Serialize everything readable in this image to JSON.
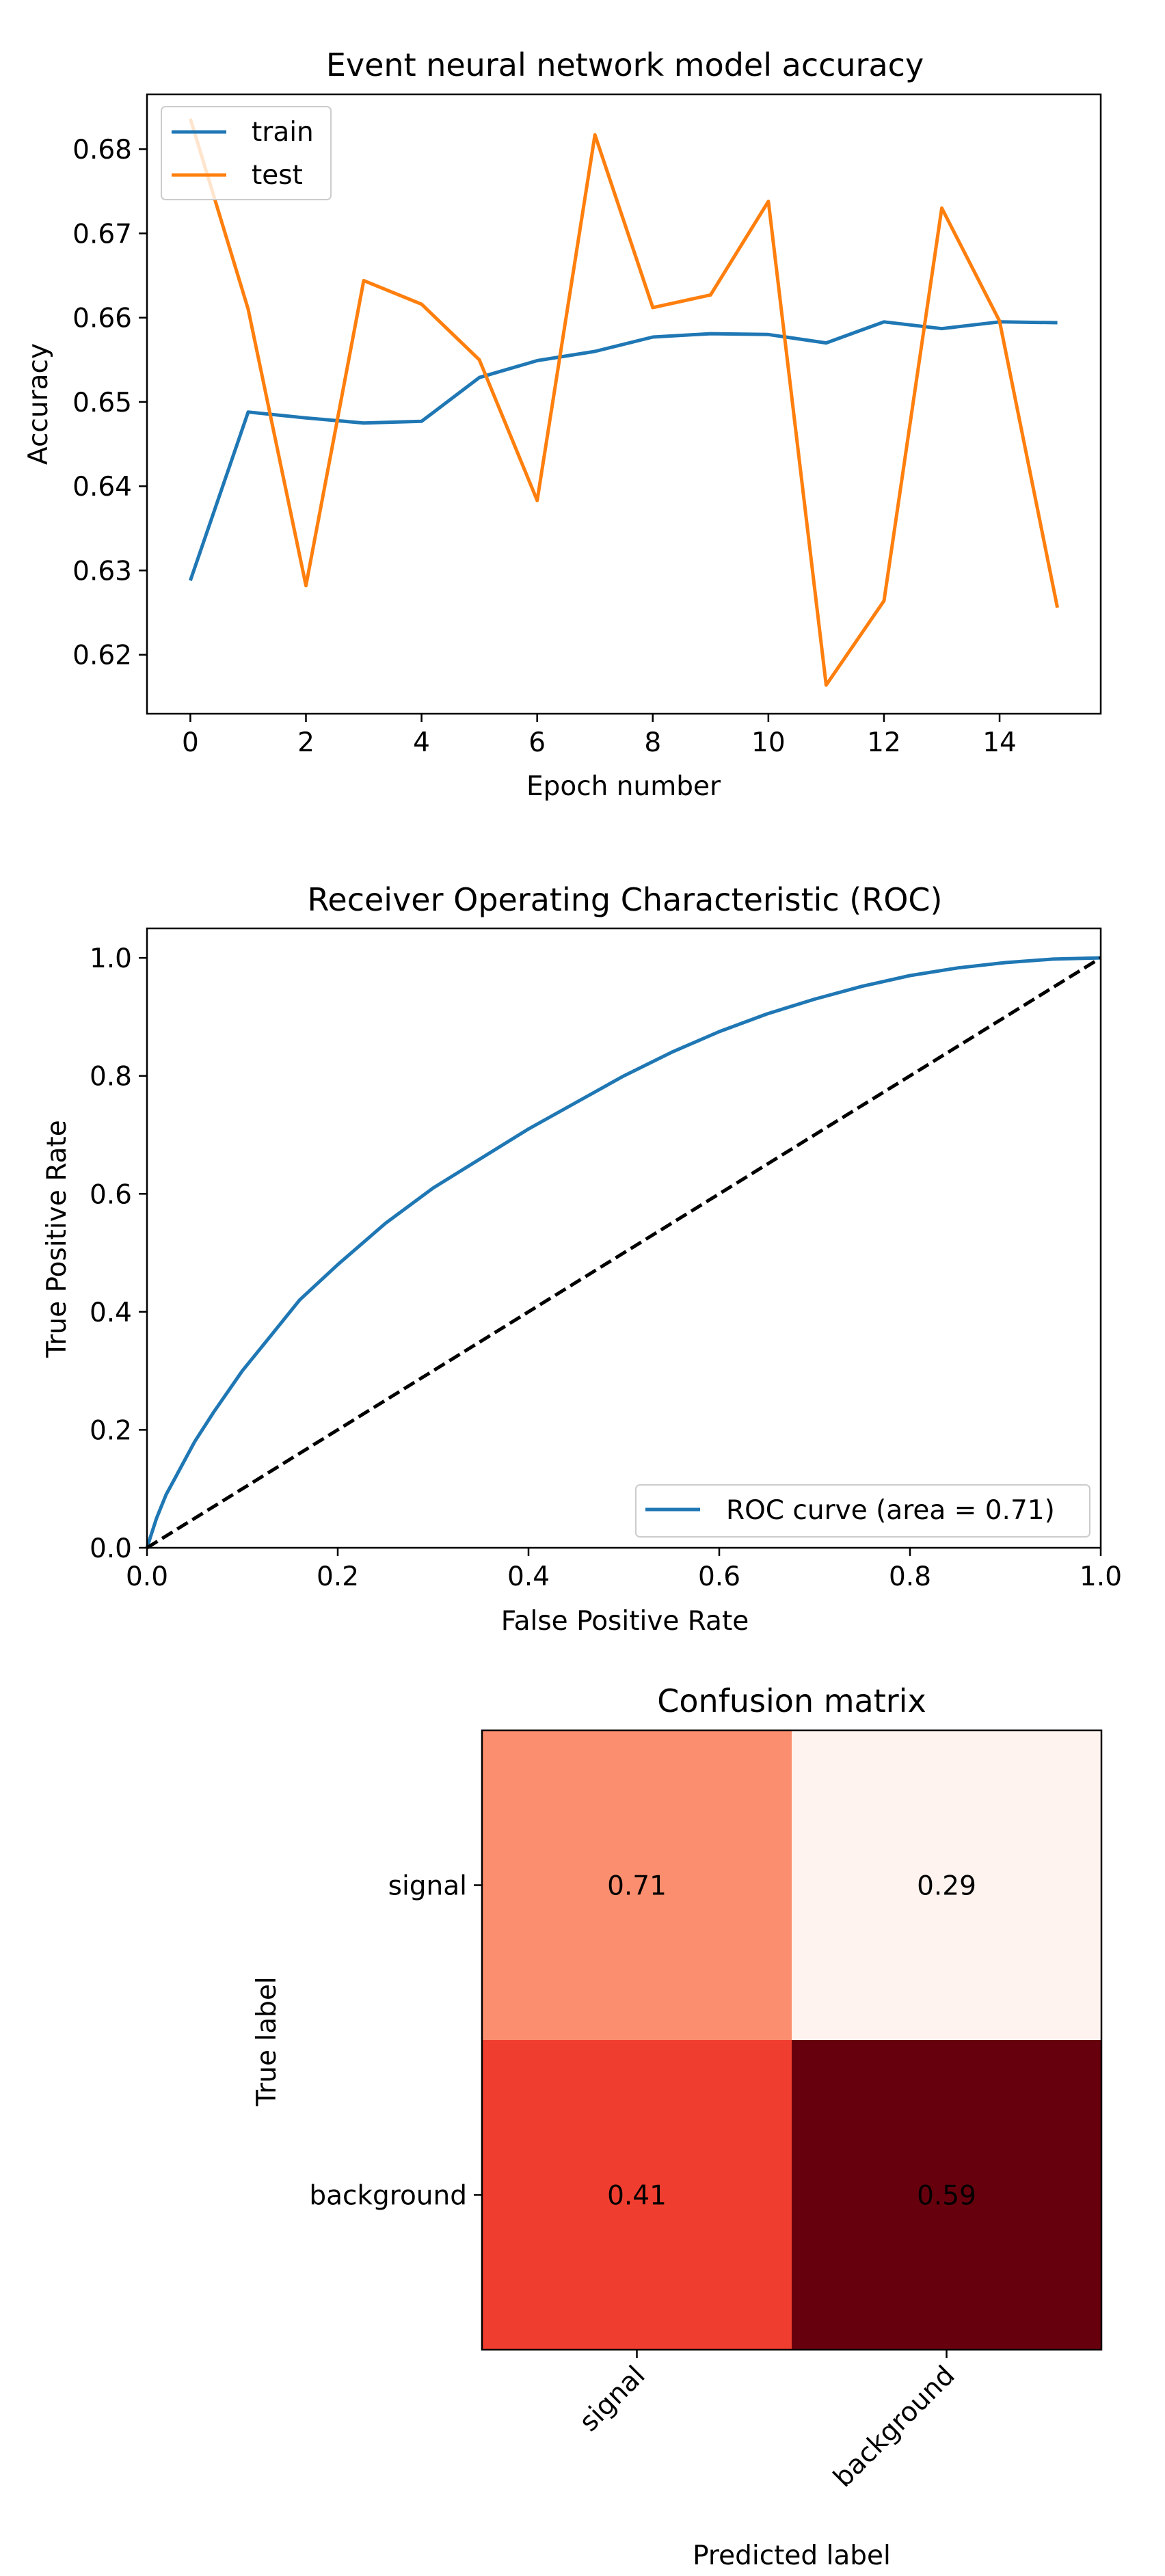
{
  "chart_data": [
    {
      "type": "line",
      "title": "Event neural network model accuracy",
      "xlabel": "Epoch number",
      "ylabel": "Accuracy",
      "xlim": [
        -0.75,
        15.75
      ],
      "ylim": [
        0.613,
        0.6865
      ],
      "xticks": [
        0,
        2,
        4,
        6,
        8,
        10,
        12,
        14
      ],
      "yticks": [
        0.62,
        0.63,
        0.64,
        0.65,
        0.66,
        0.67,
        0.68
      ],
      "ytick_labels": [
        "0.62",
        "0.63",
        "0.64",
        "0.65",
        "0.66",
        "0.67",
        "0.68"
      ],
      "legend_loc": "upper-left",
      "grid": false,
      "x": [
        0,
        1,
        2,
        3,
        4,
        5,
        6,
        7,
        8,
        9,
        10,
        11,
        12,
        13,
        14,
        15
      ],
      "series": [
        {
          "name": "train",
          "color": "#1f77b4",
          "values": [
            0.6288,
            0.6488,
            0.6481,
            0.6475,
            0.6477,
            0.6529,
            0.6549,
            0.656,
            0.6577,
            0.6581,
            0.658,
            0.657,
            0.6595,
            0.6587,
            0.6595,
            0.6594
          ]
        },
        {
          "name": "test",
          "color": "#ff7f0e",
          "values": [
            0.6836,
            0.661,
            0.6282,
            0.6644,
            0.6616,
            0.655,
            0.6383,
            0.6817,
            0.6612,
            0.6627,
            0.6738,
            0.6164,
            0.6264,
            0.673,
            0.6596,
            0.6256
          ]
        }
      ]
    },
    {
      "type": "line",
      "title": "Receiver Operating Characteristic (ROC)",
      "xlabel": "False Positive Rate",
      "ylabel": "True Positive Rate",
      "xlim": [
        0.0,
        1.0
      ],
      "ylim": [
        0.0,
        1.05
      ],
      "xticks": [
        0.0,
        0.2,
        0.4,
        0.6,
        0.8,
        1.0
      ],
      "xtick_labels": [
        "0.0",
        "0.2",
        "0.4",
        "0.6",
        "0.8",
        "1.0"
      ],
      "yticks": [
        0.0,
        0.2,
        0.4,
        0.6,
        0.8,
        1.0
      ],
      "ytick_labels": [
        "0.0",
        "0.2",
        "0.4",
        "0.6",
        "0.8",
        "1.0"
      ],
      "legend_loc": "lower-right",
      "grid": false,
      "series": [
        {
          "name": "ROC curve (area = 0.71)",
          "color": "#1f77b4",
          "x": [
            0.0,
            0.01,
            0.02,
            0.03,
            0.05,
            0.07,
            0.1,
            0.13,
            0.16,
            0.2,
            0.25,
            0.3,
            0.35,
            0.4,
            0.45,
            0.5,
            0.55,
            0.6,
            0.65,
            0.7,
            0.75,
            0.8,
            0.85,
            0.9,
            0.95,
            1.0
          ],
          "y": [
            0.0,
            0.05,
            0.09,
            0.12,
            0.18,
            0.23,
            0.3,
            0.36,
            0.42,
            0.48,
            0.55,
            0.61,
            0.66,
            0.71,
            0.755,
            0.8,
            0.84,
            0.875,
            0.905,
            0.93,
            0.952,
            0.97,
            0.983,
            0.992,
            0.998,
            1.0
          ]
        },
        {
          "name": "",
          "color": "#000000",
          "dashed": true,
          "x": [
            0.0,
            1.0
          ],
          "y": [
            0.0,
            1.0
          ]
        }
      ]
    },
    {
      "type": "heatmap",
      "title": "Confusion matrix",
      "xlabel": "Predicted label",
      "ylabel": "True label",
      "row_labels": [
        "signal",
        "background"
      ],
      "col_labels": [
        "signal",
        "background"
      ],
      "values": [
        [
          0.71,
          0.29
        ],
        [
          0.41,
          0.59
        ]
      ],
      "value_labels": [
        [
          "0.71",
          "0.29"
        ],
        [
          "0.41",
          "0.59"
        ]
      ],
      "cell_colors": [
        [
          "#fb8e6f",
          "#fff3ef"
        ],
        [
          "#ef3e2f",
          "#67000d"
        ]
      ],
      "colormap": "Reds"
    }
  ]
}
